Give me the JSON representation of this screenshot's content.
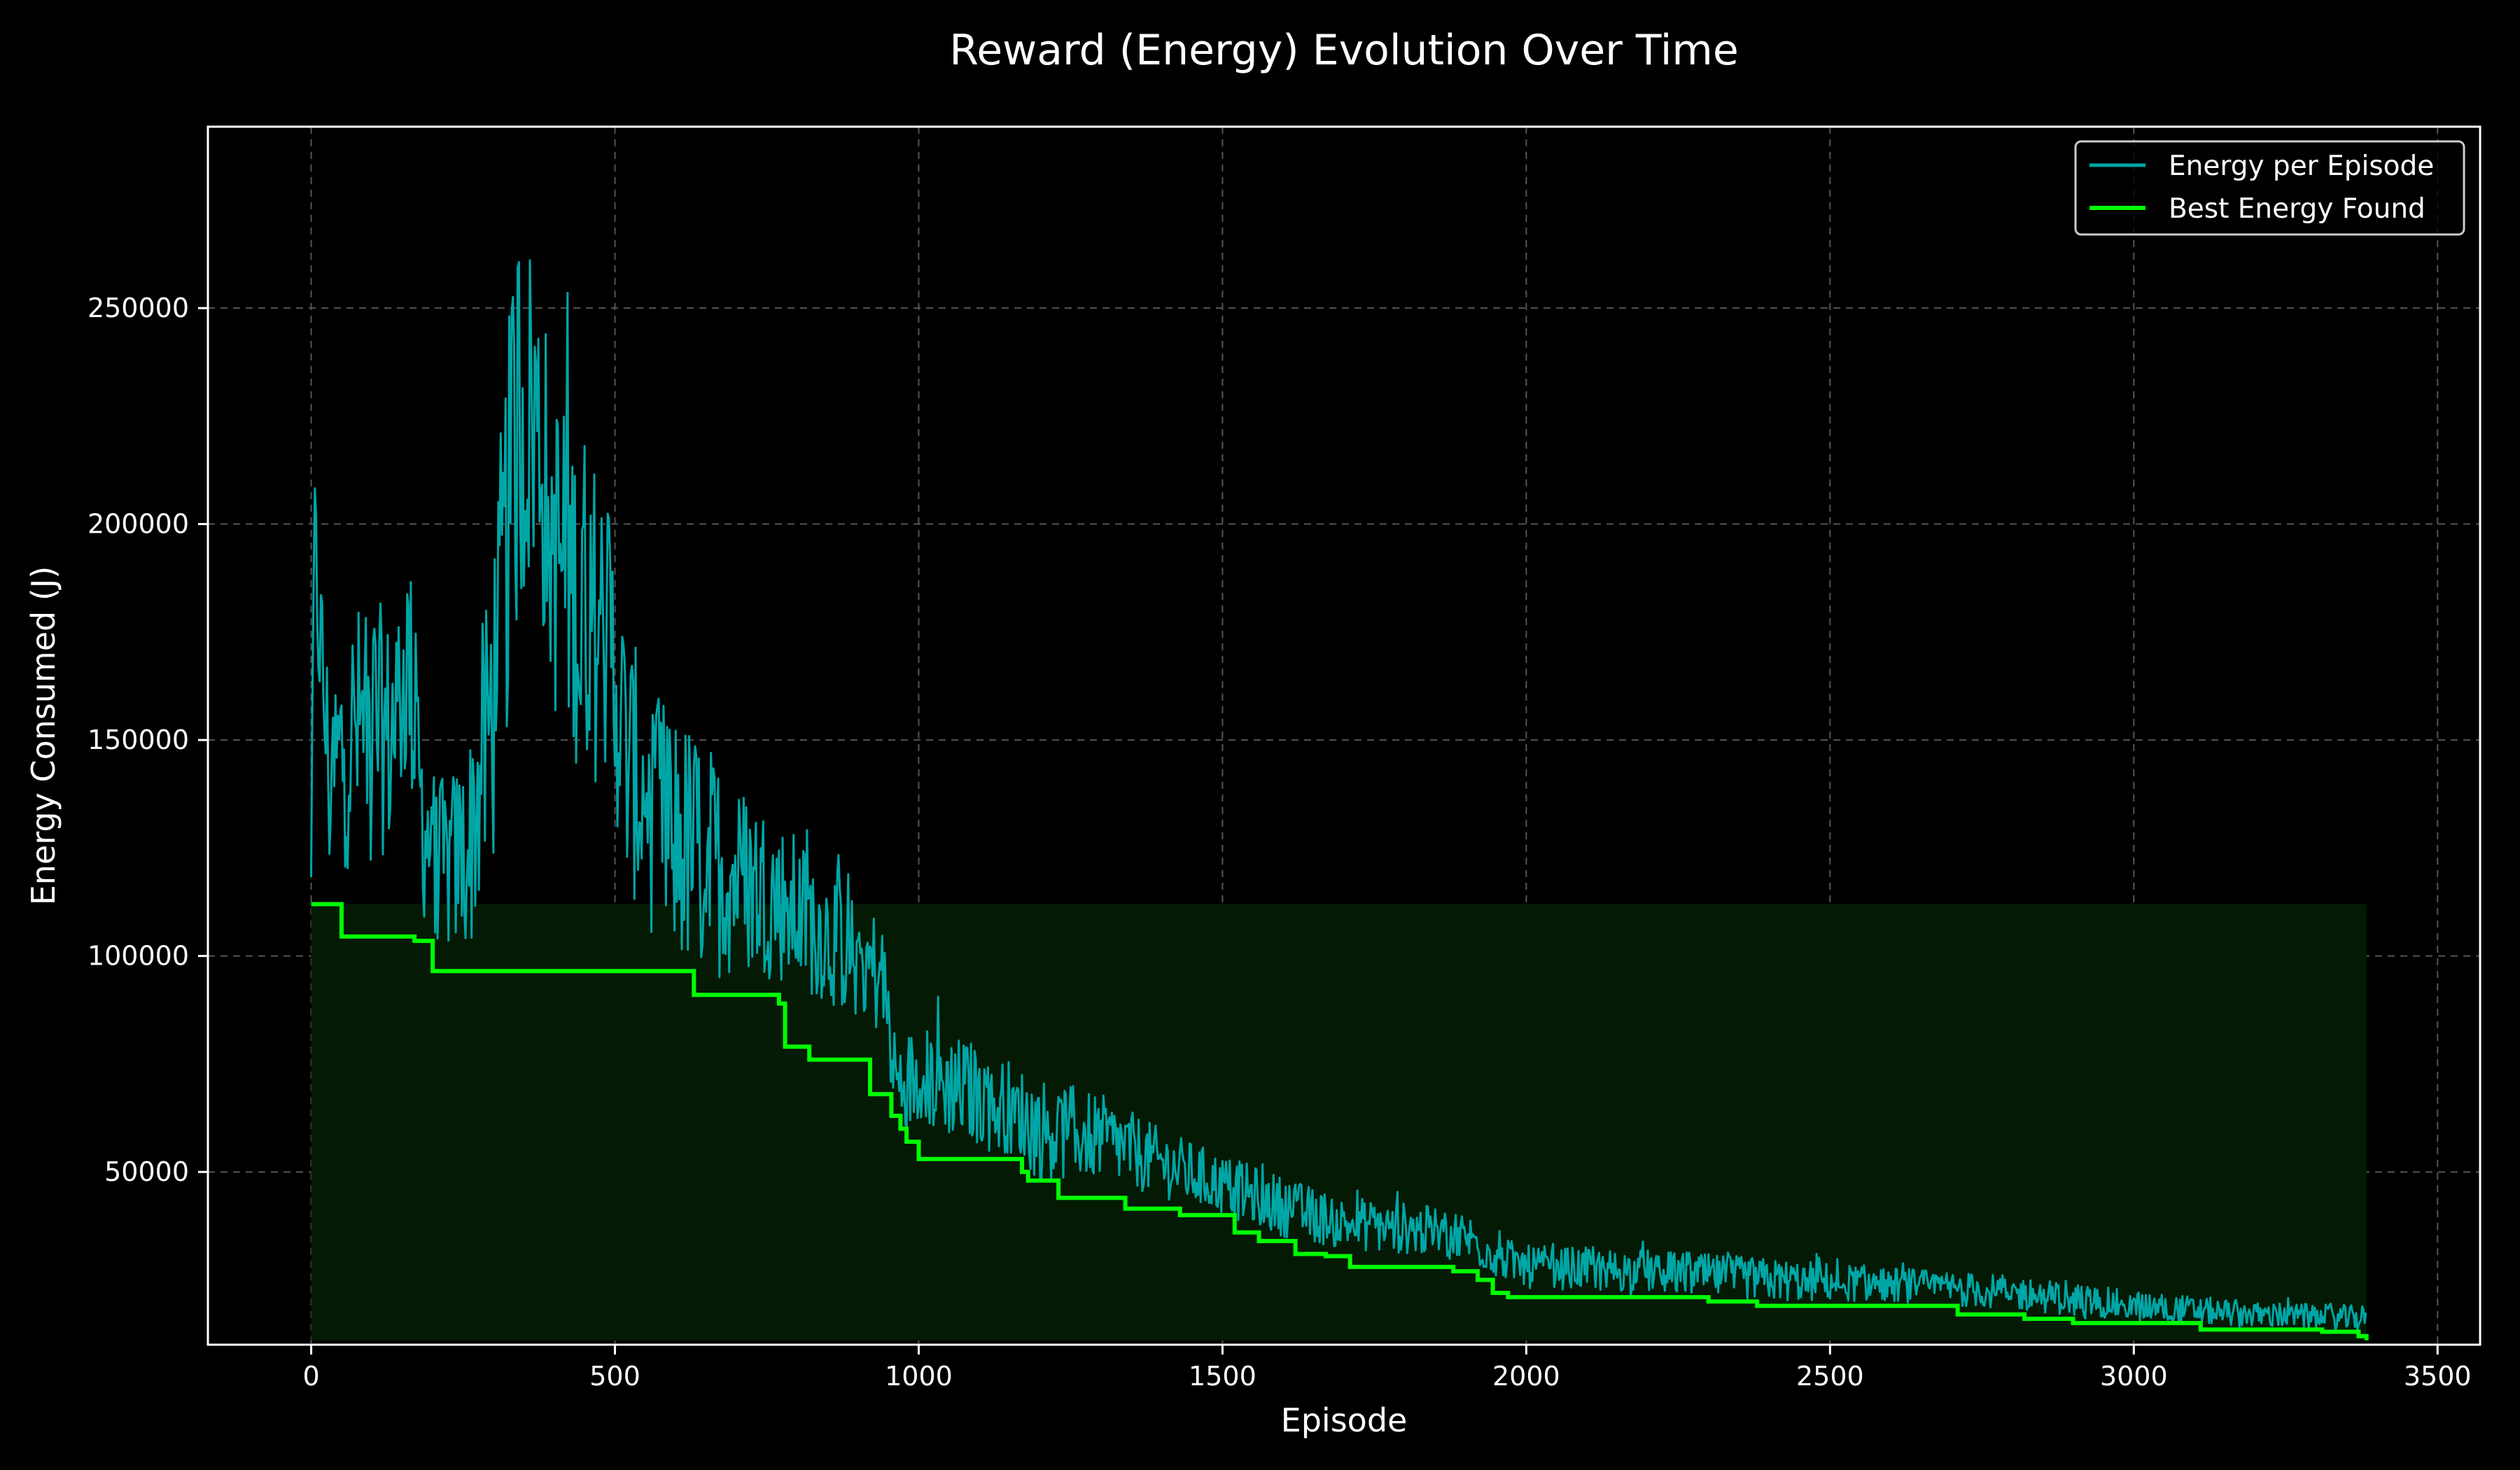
{
  "chart_data": {
    "type": "line",
    "title": "Reward (Energy) Evolution Over Time",
    "xlabel": "Episode",
    "ylabel": "Energy Consumed (J)",
    "xlim": [
      -170,
      3570
    ],
    "ylim": [
      10000,
      292000
    ],
    "xticks": [
      0,
      500,
      1000,
      1500,
      2000,
      2500,
      3000,
      3500
    ],
    "yticks": [
      50000,
      100000,
      150000,
      200000,
      250000
    ],
    "grid": true,
    "legend_position": "top-right",
    "colors": {
      "background": "#000000",
      "axes": "#ffffff",
      "grid": "#555555",
      "energy_series": "#00a6a6",
      "best_series": "#00ff00",
      "fill": "#041a04"
    },
    "series": [
      {
        "name": "Energy per Episode",
        "kind": "noisy",
        "anchors": [
          [
            0,
            112000,
            20000
          ],
          [
            5,
            195000,
            20000
          ],
          [
            30,
            140000,
            25000
          ],
          [
            60,
            150000,
            30000
          ],
          [
            100,
            155000,
            30000
          ],
          [
            130,
            150000,
            28000
          ],
          [
            160,
            170000,
            28000
          ],
          [
            185,
            130000,
            22000
          ],
          [
            220,
            120000,
            20000
          ],
          [
            260,
            125000,
            25000
          ],
          [
            300,
            160000,
            40000
          ],
          [
            340,
            225000,
            50000
          ],
          [
            370,
            225000,
            40000
          ],
          [
            400,
            195000,
            40000
          ],
          [
            450,
            180000,
            40000
          ],
          [
            490,
            175000,
            35000
          ],
          [
            520,
            145000,
            30000
          ],
          [
            580,
            130000,
            30000
          ],
          [
            620,
            125000,
            30000
          ],
          [
            680,
            120000,
            25000
          ],
          [
            750,
            115000,
            20000
          ],
          [
            800,
            110000,
            18000
          ],
          [
            850,
            105000,
            16000
          ],
          [
            900,
            100000,
            15000
          ],
          [
            940,
            95000,
            14000
          ],
          [
            965,
            70000,
            12000
          ],
          [
            1000,
            72000,
            12000
          ],
          [
            1100,
            68000,
            12000
          ],
          [
            1200,
            60000,
            12000
          ],
          [
            1300,
            58000,
            10000
          ],
          [
            1400,
            52000,
            8000
          ],
          [
            1500,
            47000,
            7000
          ],
          [
            1600,
            42000,
            7000
          ],
          [
            1700,
            38000,
            6000
          ],
          [
            1800,
            37000,
            6000
          ],
          [
            1900,
            35000,
            6000
          ],
          [
            1960,
            30000,
            5000
          ],
          [
            2000,
            28000,
            5000
          ],
          [
            2200,
            27000,
            5000
          ],
          [
            2400,
            25000,
            5000
          ],
          [
            2600,
            24000,
            4000
          ],
          [
            2800,
            22000,
            4000
          ],
          [
            3000,
            19000,
            3500
          ],
          [
            3200,
            17000,
            3000
          ],
          [
            3383,
            16000,
            3000
          ]
        ],
        "sample_step": 2
      },
      {
        "name": "Best Energy Found",
        "kind": "step",
        "points": [
          [
            0,
            112000
          ],
          [
            50,
            104500
          ],
          [
            170,
            103500
          ],
          [
            200,
            96500
          ],
          [
            630,
            91000
          ],
          [
            770,
            89000
          ],
          [
            780,
            79000
          ],
          [
            820,
            76000
          ],
          [
            920,
            68000
          ],
          [
            955,
            63000
          ],
          [
            970,
            60000
          ],
          [
            980,
            57000
          ],
          [
            1000,
            53000
          ],
          [
            1170,
            50000
          ],
          [
            1180,
            48000
          ],
          [
            1230,
            44000
          ],
          [
            1340,
            41500
          ],
          [
            1430,
            40000
          ],
          [
            1520,
            36000
          ],
          [
            1560,
            34000
          ],
          [
            1620,
            31000
          ],
          [
            1670,
            30500
          ],
          [
            1710,
            28000
          ],
          [
            1880,
            27000
          ],
          [
            1920,
            25000
          ],
          [
            1945,
            22000
          ],
          [
            1970,
            21000
          ],
          [
            2300,
            20000
          ],
          [
            2380,
            19000
          ],
          [
            2710,
            17000
          ],
          [
            2820,
            16000
          ],
          [
            2900,
            15000
          ],
          [
            3110,
            13500
          ],
          [
            3310,
            13000
          ],
          [
            3370,
            12000
          ],
          [
            3383,
            11000
          ]
        ]
      }
    ],
    "fill_band": {
      "x": [
        0,
        3383
      ],
      "y": [
        11000,
        112000
      ]
    }
  }
}
